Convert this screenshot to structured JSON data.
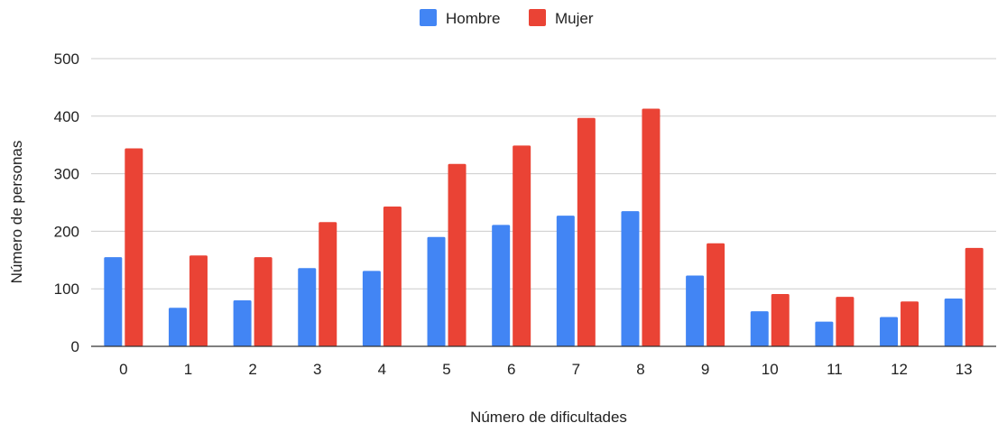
{
  "chart_data": {
    "type": "bar",
    "categories": [
      "0",
      "1",
      "2",
      "3",
      "4",
      "5",
      "6",
      "7",
      "8",
      "9",
      "10",
      "11",
      "12",
      "13"
    ],
    "series": [
      {
        "name": "Hombre",
        "color": "#4285f4",
        "values": [
          155,
          67,
          80,
          136,
          131,
          190,
          211,
          227,
          235,
          123,
          61,
          43,
          51,
          83
        ]
      },
      {
        "name": "Mujer",
        "color": "#ea4335",
        "values": [
          344,
          158,
          155,
          216,
          243,
          317,
          349,
          397,
          413,
          179,
          91,
          86,
          78,
          171
        ]
      }
    ],
    "xlabel": "Número de dificultades",
    "ylabel": "Número de personas",
    "ylim": [
      0,
      500
    ],
    "yticks": [
      "0",
      "100",
      "200",
      "300",
      "400",
      "500"
    ],
    "grid": true,
    "legend_position": "top-center"
  }
}
